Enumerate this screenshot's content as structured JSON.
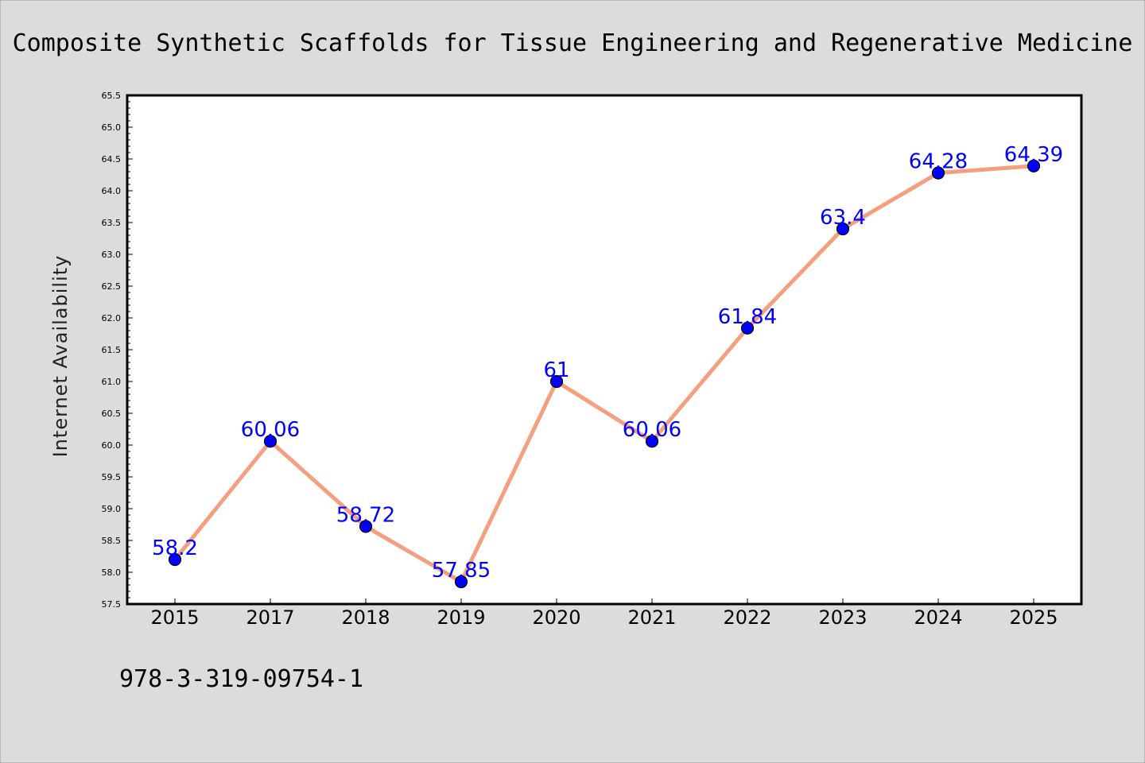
{
  "chart_data": {
    "type": "line",
    "title": "Composite Synthetic Scaffolds for Tissue Engineering and Regenerative Medicine",
    "ylabel": "Internet Availability",
    "xlabel": "",
    "categories": [
      "2015",
      "2017",
      "2018",
      "2019",
      "2020",
      "2021",
      "2022",
      "2023",
      "2024",
      "2025"
    ],
    "series": [
      {
        "values": [
          58.2,
          60.06,
          58.72,
          57.85,
          61,
          60.06,
          61.84,
          63.4,
          64.28,
          64.39
        ],
        "data_labels": [
          "58.2",
          "60.06",
          "58.72",
          "57.85",
          "61",
          "60.06",
          "61.84",
          "63.4",
          "64.28",
          "64.39"
        ]
      }
    ],
    "ylim": [
      57.5,
      65.5
    ],
    "y_ticks": [
      "57.5",
      "58.0",
      "58.5",
      "59.0",
      "59.5",
      "60.0",
      "60.5",
      "61.0",
      "61.5",
      "62.0",
      "62.5",
      "63.0",
      "63.5",
      "64.0",
      "64.5",
      "65.0",
      "65.5"
    ],
    "grid": false,
    "legend": "none",
    "colors": {
      "line": "#f4a07f",
      "marker_fill": "#0000ff",
      "marker_edge": "#000000",
      "data_label": "#0000ff",
      "background": "#dcdcdc",
      "plot_background": "#ffffff"
    }
  },
  "footnote": "978-3-319-09754-1"
}
